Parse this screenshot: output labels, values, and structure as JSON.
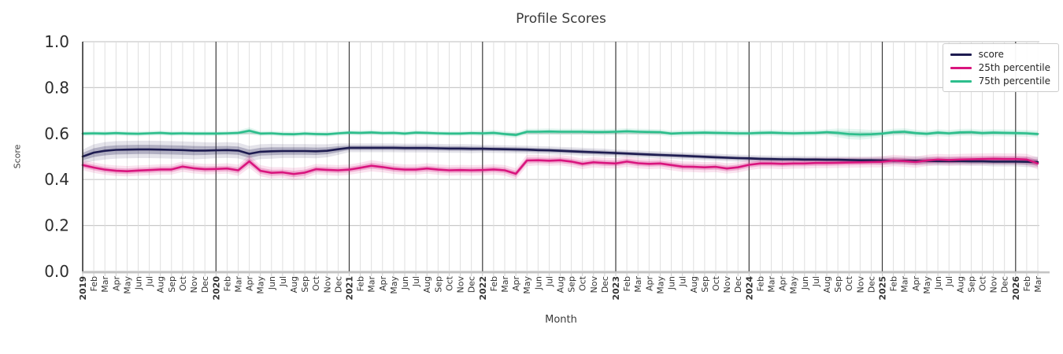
{
  "chart_data": {
    "type": "line",
    "title": "Profile Scores",
    "xlabel": "Month",
    "ylabel": "Score",
    "ylim": [
      0.0,
      1.0
    ],
    "yticks": [
      0.0,
      0.2,
      0.4,
      0.6,
      0.8,
      1.0
    ],
    "grid": true,
    "legend_position": "upper right",
    "x": [
      "2019",
      "Feb",
      "Mar",
      "Apr",
      "May",
      "Jun",
      "Jul",
      "Aug",
      "Sep",
      "Oct",
      "Nov",
      "Dec",
      "2020",
      "Feb",
      "Mar",
      "Apr",
      "May",
      "Jun",
      "Jul",
      "Aug",
      "Sep",
      "Oct",
      "Nov",
      "Dec",
      "2021",
      "Feb",
      "Mar",
      "Apr",
      "May",
      "Jun",
      "Jul",
      "Aug",
      "Sep",
      "Oct",
      "Nov",
      "Dec",
      "2022",
      "Feb",
      "Mar",
      "Apr",
      "May",
      "Jun",
      "Jul",
      "Aug",
      "Sep",
      "Oct",
      "Nov",
      "Dec",
      "2023",
      "Feb",
      "Mar",
      "Apr",
      "May",
      "Jun",
      "Jul",
      "Aug",
      "Sep",
      "Oct",
      "Nov",
      "Dec",
      "2024",
      "Feb",
      "Mar",
      "Apr",
      "May",
      "Jun",
      "Jul",
      "Aug",
      "Sep",
      "Oct",
      "Nov",
      "Dec",
      "2025",
      "Feb",
      "Mar",
      "Apr",
      "May",
      "Jun",
      "Jul",
      "Aug",
      "Sep",
      "Oct",
      "Nov",
      "Dec",
      "2026",
      "Feb",
      "Mar"
    ],
    "series": [
      {
        "name": "score",
        "color": "#1d1b50",
        "values": [
          0.5,
          0.517,
          0.525,
          0.529,
          0.53,
          0.531,
          0.531,
          0.53,
          0.529,
          0.528,
          0.526,
          0.526,
          0.527,
          0.528,
          0.526,
          0.512,
          0.521,
          0.523,
          0.524,
          0.524,
          0.524,
          0.523,
          0.525,
          0.532,
          0.538,
          0.538,
          0.538,
          0.538,
          0.538,
          0.537,
          0.537,
          0.537,
          0.536,
          0.535,
          0.535,
          0.534,
          0.534,
          0.533,
          0.532,
          0.531,
          0.53,
          0.528,
          0.527,
          0.525,
          0.523,
          0.521,
          0.519,
          0.517,
          0.515,
          0.513,
          0.511,
          0.509,
          0.507,
          0.505,
          0.503,
          0.501,
          0.499,
          0.497,
          0.495,
          0.493,
          0.492,
          0.49,
          0.489,
          0.488,
          0.488,
          0.487,
          0.487,
          0.486,
          0.486,
          0.485,
          0.484,
          0.484,
          0.483,
          0.482,
          0.482,
          0.481,
          0.481,
          0.48,
          0.48,
          0.48,
          0.479,
          0.479,
          0.478,
          0.478,
          0.478,
          0.477,
          0.476
        ],
        "band": [
          0.016,
          0.019,
          0.02,
          0.02,
          0.02,
          0.02,
          0.02,
          0.02,
          0.02,
          0.02,
          0.02,
          0.019,
          0.018,
          0.018,
          0.018,
          0.018,
          0.017,
          0.017,
          0.016,
          0.016,
          0.016,
          0.016,
          0.015,
          0.013,
          0.01,
          0.01,
          0.01,
          0.01,
          0.01,
          0.01,
          0.01,
          0.01,
          0.01,
          0.01,
          0.01,
          0.01,
          0.009,
          0.009,
          0.009,
          0.009,
          0.009,
          0.009,
          0.009,
          0.009,
          0.009,
          0.009,
          0.009,
          0.009,
          0.008,
          0.008,
          0.008,
          0.008,
          0.008,
          0.008,
          0.008,
          0.008,
          0.008,
          0.008,
          0.008,
          0.008,
          0.008,
          0.008,
          0.008,
          0.008,
          0.008,
          0.008,
          0.008,
          0.008,
          0.008,
          0.008,
          0.008,
          0.008,
          0.009,
          0.009,
          0.009,
          0.01,
          0.01,
          0.01,
          0.01,
          0.01,
          0.01,
          0.01,
          0.011,
          0.011,
          0.011,
          0.012,
          0.012
        ]
      },
      {
        "name": "25th percentile",
        "color": "#d9157e",
        "values": [
          0.463,
          0.452,
          0.443,
          0.438,
          0.436,
          0.439,
          0.441,
          0.444,
          0.444,
          0.456,
          0.449,
          0.445,
          0.446,
          0.448,
          0.44,
          0.479,
          0.438,
          0.429,
          0.431,
          0.424,
          0.43,
          0.445,
          0.442,
          0.44,
          0.443,
          0.451,
          0.46,
          0.454,
          0.447,
          0.443,
          0.443,
          0.448,
          0.443,
          0.44,
          0.441,
          0.44,
          0.441,
          0.444,
          0.44,
          0.425,
          0.483,
          0.484,
          0.482,
          0.484,
          0.478,
          0.468,
          0.475,
          0.472,
          0.47,
          0.478,
          0.471,
          0.468,
          0.47,
          0.463,
          0.456,
          0.455,
          0.453,
          0.455,
          0.448,
          0.453,
          0.464,
          0.47,
          0.47,
          0.468,
          0.47,
          0.47,
          0.472,
          0.472,
          0.473,
          0.474,
          0.475,
          0.476,
          0.477,
          0.483,
          0.48,
          0.476,
          0.483,
          0.487,
          0.485,
          0.487,
          0.488,
          0.489,
          0.49,
          0.489,
          0.489,
          0.487,
          0.47
        ],
        "band": [
          0.012,
          0.012,
          0.012,
          0.012,
          0.012,
          0.012,
          0.012,
          0.012,
          0.012,
          0.012,
          0.012,
          0.012,
          0.012,
          0.012,
          0.013,
          0.015,
          0.013,
          0.013,
          0.012,
          0.014,
          0.013,
          0.012,
          0.012,
          0.012,
          0.012,
          0.012,
          0.013,
          0.012,
          0.012,
          0.012,
          0.012,
          0.012,
          0.012,
          0.012,
          0.012,
          0.012,
          0.012,
          0.012,
          0.012,
          0.013,
          0.013,
          0.012,
          0.012,
          0.012,
          0.012,
          0.012,
          0.012,
          0.012,
          0.012,
          0.012,
          0.012,
          0.012,
          0.012,
          0.012,
          0.012,
          0.012,
          0.012,
          0.012,
          0.012,
          0.012,
          0.012,
          0.012,
          0.012,
          0.012,
          0.012,
          0.012,
          0.012,
          0.012,
          0.012,
          0.012,
          0.012,
          0.012,
          0.013,
          0.013,
          0.013,
          0.013,
          0.013,
          0.013,
          0.013,
          0.013,
          0.013,
          0.013,
          0.013,
          0.013,
          0.013,
          0.013,
          0.014
        ]
      },
      {
        "name": "75th percentile",
        "color": "#2dbe8c",
        "values": [
          0.6,
          0.601,
          0.6,
          0.602,
          0.6,
          0.599,
          0.601,
          0.603,
          0.6,
          0.601,
          0.6,
          0.6,
          0.6,
          0.601,
          0.603,
          0.612,
          0.6,
          0.601,
          0.598,
          0.597,
          0.6,
          0.598,
          0.597,
          0.601,
          0.604,
          0.603,
          0.605,
          0.602,
          0.603,
          0.6,
          0.604,
          0.603,
          0.601,
          0.6,
          0.6,
          0.602,
          0.601,
          0.603,
          0.598,
          0.594,
          0.608,
          0.608,
          0.609,
          0.608,
          0.608,
          0.608,
          0.607,
          0.607,
          0.608,
          0.61,
          0.608,
          0.607,
          0.606,
          0.6,
          0.602,
          0.603,
          0.604,
          0.603,
          0.602,
          0.601,
          0.601,
          0.603,
          0.604,
          0.602,
          0.601,
          0.602,
          0.603,
          0.606,
          0.603,
          0.598,
          0.596,
          0.597,
          0.6,
          0.606,
          0.608,
          0.602,
          0.599,
          0.604,
          0.601,
          0.605,
          0.606,
          0.602,
          0.604,
          0.603,
          0.602,
          0.601,
          0.598
        ],
        "band": [
          0.006,
          0.006,
          0.006,
          0.006,
          0.006,
          0.006,
          0.006,
          0.006,
          0.006,
          0.006,
          0.006,
          0.006,
          0.006,
          0.006,
          0.006,
          0.008,
          0.006,
          0.006,
          0.006,
          0.006,
          0.006,
          0.006,
          0.006,
          0.006,
          0.006,
          0.006,
          0.006,
          0.006,
          0.006,
          0.006,
          0.006,
          0.006,
          0.006,
          0.006,
          0.006,
          0.006,
          0.007,
          0.007,
          0.007,
          0.007,
          0.007,
          0.007,
          0.007,
          0.007,
          0.007,
          0.007,
          0.007,
          0.007,
          0.007,
          0.007,
          0.007,
          0.007,
          0.007,
          0.007,
          0.007,
          0.007,
          0.007,
          0.007,
          0.007,
          0.007,
          0.007,
          0.007,
          0.007,
          0.007,
          0.007,
          0.007,
          0.007,
          0.007,
          0.01,
          0.012,
          0.012,
          0.01,
          0.008,
          0.008,
          0.008,
          0.008,
          0.008,
          0.008,
          0.008,
          0.008,
          0.008,
          0.008,
          0.008,
          0.008,
          0.008,
          0.008,
          0.008
        ]
      }
    ]
  }
}
